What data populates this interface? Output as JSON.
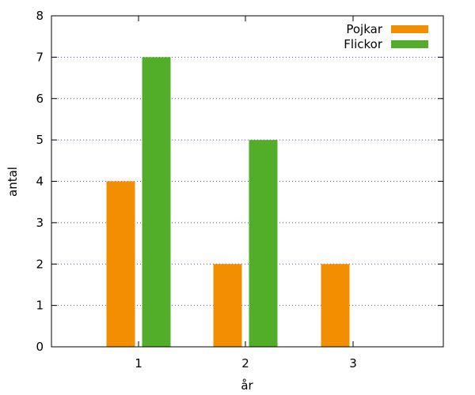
{
  "chart_data": {
    "type": "bar",
    "title": "",
    "xlabel": "år",
    "ylabel": "antal",
    "categories": [
      "1",
      "2",
      "3"
    ],
    "series": [
      {
        "name": "Pojkar",
        "values": [
          4,
          2,
          2
        ],
        "color": "#f28e00"
      },
      {
        "name": "Flickor",
        "values": [
          7,
          5,
          0
        ],
        "color": "#52ae29"
      }
    ],
    "ylim": [
      0,
      8
    ],
    "yticks": [
      0,
      1,
      2,
      3,
      4,
      5,
      6,
      7,
      8
    ],
    "grid": true,
    "legend_position": "top-right"
  }
}
